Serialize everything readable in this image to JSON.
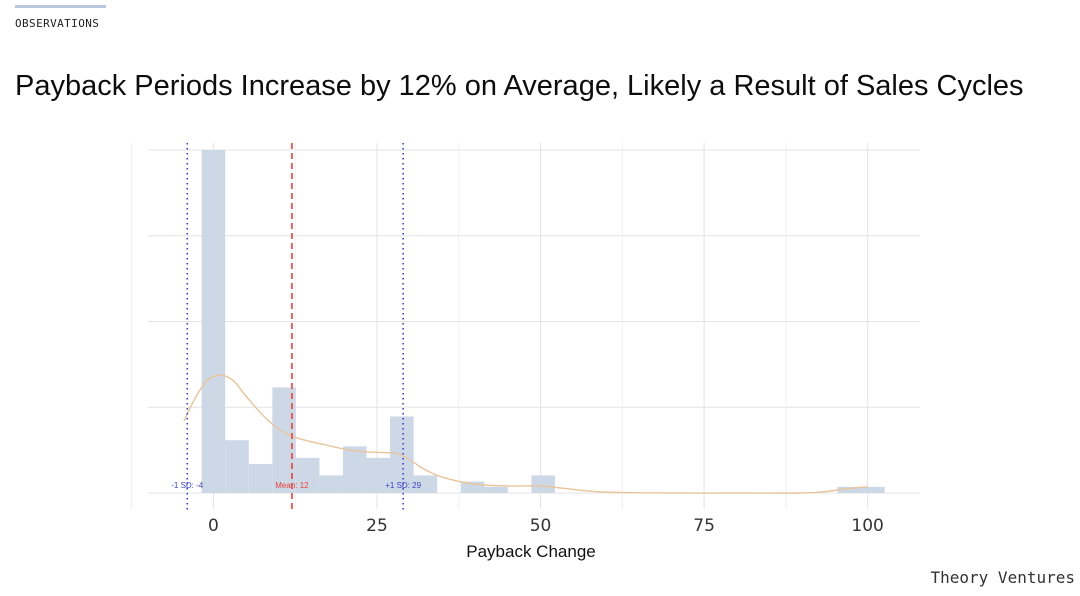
{
  "header": {
    "section_label": "OBSERVATIONS",
    "title": "Payback Periods Increase by 12% on Average, Likely a Result of Sales Cycles"
  },
  "footer": {
    "brand": "Theory Ventures"
  },
  "colors": {
    "bar_fill": "#cdd8e6",
    "density_line": "#e9c49b",
    "mean_line": "#e8423a",
    "sd_line": "#3b3fcf",
    "grid": "#e3e3e3",
    "accent_rule": "#b9c7dc"
  },
  "chart_data": {
    "type": "histogram",
    "xlabel": "Payback Change",
    "xlim": [
      -10,
      108
    ],
    "ylim": [
      0,
      3.9
    ],
    "x_ticks": [
      0,
      25,
      50,
      75,
      100
    ],
    "x_tick_labels": [
      "0",
      "25",
      "50",
      "75",
      "100"
    ],
    "y_tick_labels_shown": false,
    "grid": true,
    "bins": [
      {
        "start": -1.8,
        "end": 1.8,
        "count": 3.9
      },
      {
        "start": 1.8,
        "end": 5.4,
        "count": 0.6
      },
      {
        "start": 5.4,
        "end": 9.0,
        "count": 0.33
      },
      {
        "start": 9.0,
        "end": 12.6,
        "count": 1.2
      },
      {
        "start": 12.6,
        "end": 16.2,
        "count": 0.4
      },
      {
        "start": 16.2,
        "end": 19.8,
        "count": 0.2
      },
      {
        "start": 19.8,
        "end": 23.4,
        "count": 0.53
      },
      {
        "start": 23.4,
        "end": 27.0,
        "count": 0.4
      },
      {
        "start": 27.0,
        "end": 30.6,
        "count": 0.87
      },
      {
        "start": 30.6,
        "end": 34.2,
        "count": 0.2
      },
      {
        "start": 37.8,
        "end": 41.4,
        "count": 0.13
      },
      {
        "start": 41.4,
        "end": 45.0,
        "count": 0.07
      },
      {
        "start": 48.6,
        "end": 52.2,
        "count": 0.2
      },
      {
        "start": 95.4,
        "end": 102.6,
        "count": 0.07
      }
    ],
    "density": {
      "x": [
        -4.5,
        -3,
        -1,
        1,
        3,
        5,
        8,
        11,
        14,
        17,
        20,
        23,
        26,
        28,
        30,
        32,
        35,
        40,
        45,
        50,
        55,
        60,
        70,
        80,
        90,
        94,
        97,
        100
      ],
      "y": [
        0.82,
        1.05,
        1.28,
        1.34,
        1.28,
        1.1,
        0.85,
        0.68,
        0.6,
        0.55,
        0.5,
        0.47,
        0.46,
        0.45,
        0.38,
        0.28,
        0.18,
        0.1,
        0.08,
        0.08,
        0.04,
        0.01,
        0.0,
        0.0,
        0.0,
        0.02,
        0.05,
        0.07
      ]
    },
    "reference_lines": [
      {
        "x": -4,
        "label": "-1 SD: -4",
        "style": "dotted",
        "color": "#3b3fcf"
      },
      {
        "x": 12,
        "label": "Mean: 12",
        "style": "dashed",
        "color": "#e8423a"
      },
      {
        "x": 29,
        "label": "+1 SD: 29",
        "style": "dotted",
        "color": "#3b3fcf"
      }
    ]
  }
}
